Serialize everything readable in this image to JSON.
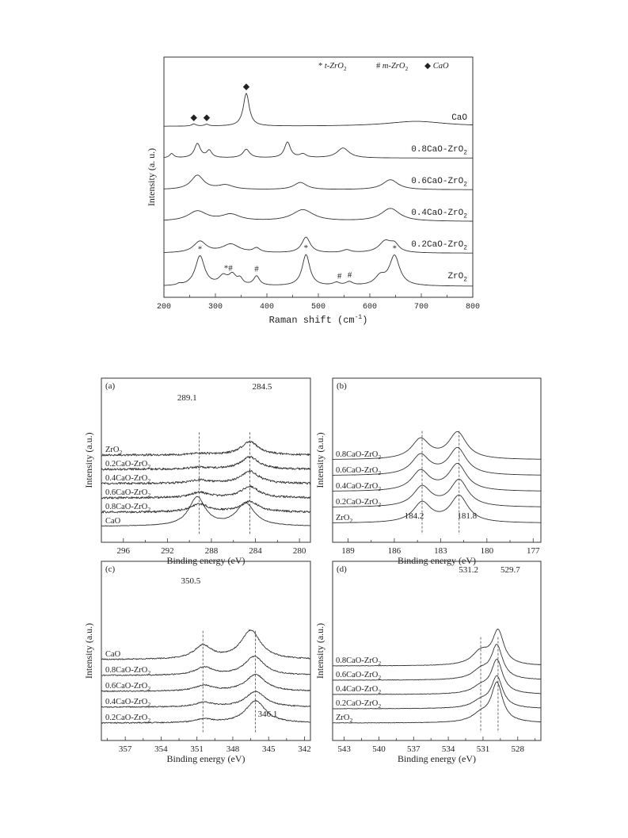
{
  "chart_data": [
    {
      "type": "line",
      "panel": "raman",
      "xlabel": "Raman shift (cm",
      "xlabel_sup": "-1",
      "xlabel_tail": ")",
      "ylabel": "Intensity (a. u.)",
      "xlim": [
        200,
        800
      ],
      "xticks": [
        200,
        300,
        400,
        500,
        600,
        700,
        800
      ],
      "legend": [
        {
          "symbol": "*",
          "label": "t-ZrO",
          "sub": "2"
        },
        {
          "symbol": "#",
          "label": "m-ZrO",
          "sub": "2"
        },
        {
          "symbol": "◆",
          "label": "CaO",
          "sub": ""
        }
      ],
      "series": [
        {
          "name": "CaO",
          "sub": "",
          "offset": 5,
          "baseline": 0.2,
          "peaks": [
            [
              258,
              0.15,
              5
            ],
            [
              283,
              0.12,
              5
            ],
            [
              360,
              2.3,
              7
            ],
            [
              690,
              0.35,
              70
            ]
          ]
        },
        {
          "name": "0.8CaO-ZrO",
          "sub": "2",
          "offset": 4,
          "baseline": 0.2,
          "peaks": [
            [
              215,
              0.3,
              5
            ],
            [
              265,
              1.0,
              7
            ],
            [
              288,
              0.5,
              6
            ],
            [
              360,
              0.6,
              8
            ],
            [
              440,
              1.1,
              7
            ],
            [
              470,
              0.25,
              8
            ],
            [
              548,
              0.7,
              14
            ]
          ]
        },
        {
          "name": "0.6CaO-ZrO",
          "sub": "2",
          "offset": 3,
          "baseline": 0.2,
          "peaks": [
            [
              265,
              1.0,
              15
            ],
            [
              320,
              0.3,
              18
            ],
            [
              465,
              0.5,
              15
            ],
            [
              640,
              0.7,
              18
            ]
          ]
        },
        {
          "name": "0.4CaO-ZrO",
          "sub": "2",
          "offset": 2,
          "baseline": 0.2,
          "peaks": [
            [
              265,
              0.7,
              22
            ],
            [
              330,
              0.45,
              22
            ],
            [
              470,
              0.8,
              25
            ],
            [
              640,
              0.9,
              22
            ]
          ]
        },
        {
          "name": "0.2CaO-ZrO",
          "sub": "2",
          "offset": 1,
          "baseline": 0.2,
          "peaks": [
            [
              270,
              0.8,
              15
            ],
            [
              330,
              0.6,
              20
            ],
            [
              380,
              0.3,
              8
            ],
            [
              476,
              1.1,
              10
            ],
            [
              555,
              0.2,
              10
            ],
            [
              630,
              0.8,
              15
            ],
            [
              648,
              0.5,
              10
            ]
          ]
        },
        {
          "name": "ZrO",
          "sub": "2",
          "offset": 0,
          "baseline": 0.1,
          "peaks": [
            [
              230,
              0.1,
              5
            ],
            [
              270,
              2.1,
              11
            ],
            [
              315,
              0.6,
              10
            ],
            [
              333,
              0.7,
              9
            ],
            [
              348,
              0.4,
              6
            ],
            [
              380,
              0.65,
              7
            ],
            [
              476,
              2.2,
              9
            ],
            [
              535,
              0.2,
              8
            ],
            [
              560,
              0.25,
              8
            ],
            [
              620,
              0.6,
              12
            ],
            [
              648,
              2.1,
              12
            ]
          ]
        }
      ],
      "annotations": [
        {
          "x": 258,
          "mark": "◆",
          "row": 5
        },
        {
          "x": 283,
          "mark": "◆",
          "row": 5
        },
        {
          "x": 360,
          "mark": "◆",
          "row": 5
        },
        {
          "x": 270,
          "mark": "*",
          "row": 0
        },
        {
          "x": 325,
          "mark": "*#",
          "row": 0
        },
        {
          "x": 380,
          "mark": "#",
          "row": 0
        },
        {
          "x": 476,
          "mark": "*",
          "row": 0
        },
        {
          "x": 541,
          "mark": "#",
          "row": 0
        },
        {
          "x": 561,
          "mark": "#",
          "row": 0
        },
        {
          "x": 648,
          "mark": "*",
          "row": 0
        }
      ]
    },
    {
      "type": "line",
      "panel": "(a)",
      "xlabel": "Binding energy (eV)",
      "ylabel": "Intensity (a.u.)",
      "xlim": [
        298,
        279
      ],
      "xticks": [
        296,
        292,
        288,
        284,
        280
      ],
      "peak_labels": [
        {
          "x": 289.1,
          "text": "289.1"
        },
        {
          "x": 284.5,
          "text": "284.5"
        }
      ],
      "series": [
        {
          "name": "ZrO",
          "sub": "2",
          "offset": 5,
          "noise": 0.12,
          "peaks": [
            [
              289.1,
              0.15,
              1.2
            ],
            [
              284.5,
              1.5,
              1.0
            ]
          ]
        },
        {
          "name": "0.2CaO-ZrO",
          "sub": "2",
          "offset": 4,
          "noise": 0.12,
          "peaks": [
            [
              289.1,
              0.2,
              1.2
            ],
            [
              284.5,
              1.4,
              1.0
            ]
          ]
        },
        {
          "name": "0.4CaO-ZrO",
          "sub": "2",
          "offset": 3,
          "noise": 0.12,
          "peaks": [
            [
              289.1,
              0.4,
              1.1
            ],
            [
              284.5,
              1.4,
              1.0
            ]
          ]
        },
        {
          "name": "0.6CaO-ZrO",
          "sub": "2",
          "offset": 2,
          "noise": 0.12,
          "peaks": [
            [
              289.1,
              0.6,
              1.0
            ],
            [
              284.5,
              1.3,
              1.0
            ]
          ]
        },
        {
          "name": "0.8CaO-ZrO",
          "sub": "2",
          "offset": 1,
          "noise": 0.12,
          "peaks": [
            [
              289.1,
              0.9,
              1.0
            ],
            [
              284.5,
              1.2,
              1.0
            ]
          ]
        },
        {
          "name": "CaO",
          "sub": "",
          "offset": 0,
          "noise": 0.03,
          "peaks": [
            [
              289.3,
              3.3,
              0.9
            ],
            [
              284.9,
              2.6,
              1.0
            ]
          ]
        }
      ]
    },
    {
      "type": "line",
      "panel": "(b)",
      "xlabel": "Binding energy (eV)",
      "ylabel": "Intensity (a.u.)",
      "xlim": [
        190,
        176.5
      ],
      "xticks": [
        189,
        186,
        183,
        180,
        177
      ],
      "peak_labels": [
        {
          "x": 184.2,
          "text": "184.2"
        },
        {
          "x": 181.8,
          "text": "181.8"
        }
      ],
      "series": [
        {
          "name": "0.8CaO-ZrO",
          "sub": "2",
          "offset": 4,
          "noise": 0.0,
          "peaks": [
            [
              184.3,
              1.8,
              0.7
            ],
            [
              181.9,
              2.4,
              0.7
            ]
          ]
        },
        {
          "name": "0.6CaO-ZrO",
          "sub": "2",
          "offset": 3,
          "noise": 0.0,
          "peaks": [
            [
              184.3,
              1.8,
              0.7
            ],
            [
              181.9,
              2.4,
              0.7
            ]
          ]
        },
        {
          "name": "0.4CaO-ZrO",
          "sub": "2",
          "offset": 2,
          "noise": 0.0,
          "peaks": [
            [
              184.3,
              1.8,
              0.7
            ],
            [
              181.9,
              2.4,
              0.7
            ]
          ]
        },
        {
          "name": "0.2CaO-ZrO",
          "sub": "2",
          "offset": 1,
          "noise": 0.0,
          "peaks": [
            [
              184.2,
              1.8,
              0.7
            ],
            [
              181.8,
              2.4,
              0.7
            ]
          ]
        },
        {
          "name": "ZrO",
          "sub": "2",
          "offset": 0,
          "noise": 0.0,
          "peaks": [
            [
              184.2,
              1.8,
              0.7
            ],
            [
              181.8,
              2.4,
              0.7
            ]
          ]
        }
      ]
    },
    {
      "type": "line",
      "panel": "(c)",
      "xlabel": "Binding energy (eV)",
      "ylabel": "Intensity (a.u.)",
      "xlim": [
        359,
        341.5
      ],
      "xticks": [
        357,
        354,
        351,
        348,
        345,
        342
      ],
      "peak_labels": [
        {
          "x": 350.5,
          "text": "350.5",
          "pos": "top"
        },
        {
          "x": 346.1,
          "text": "346.1",
          "pos": "bottom"
        }
      ],
      "series": [
        {
          "name": "CaO",
          "sub": "",
          "offset": 4,
          "noise": 0.05,
          "peaks": [
            [
              350.5,
              1.2,
              0.9
            ],
            [
              346.5,
              2.6,
              1.0
            ]
          ]
        },
        {
          "name": "0.8CaO-ZrO",
          "sub": "2",
          "offset": 3,
          "noise": 0.05,
          "peaks": [
            [
              350.4,
              0.7,
              0.9
            ],
            [
              346.2,
              1.7,
              1.0
            ]
          ]
        },
        {
          "name": "0.6CaO-ZrO",
          "sub": "2",
          "offset": 2,
          "noise": 0.05,
          "peaks": [
            [
              350.4,
              0.5,
              0.9
            ],
            [
              346.1,
              1.5,
              1.0
            ]
          ]
        },
        {
          "name": "0.4CaO-ZrO",
          "sub": "2",
          "offset": 1,
          "noise": 0.05,
          "peaks": [
            [
              350.4,
              0.4,
              0.9
            ],
            [
              346.1,
              1.4,
              1.0
            ]
          ]
        },
        {
          "name": "0.2CaO-ZrO",
          "sub": "2",
          "offset": 0,
          "noise": 0.05,
          "peaks": [
            [
              350.4,
              0.3,
              0.9
            ],
            [
              346.1,
              2.0,
              1.0
            ]
          ]
        }
      ]
    },
    {
      "type": "line",
      "panel": "(d)",
      "xlabel": "Binding energy (eV)",
      "ylabel": "Intensity (a.u.)",
      "xlim": [
        544,
        526
      ],
      "xticks": [
        543,
        540,
        537,
        534,
        531,
        528
      ],
      "peak_labels": [
        {
          "x": 531.2,
          "text": "531.2"
        },
        {
          "x": 529.7,
          "text": "529.7"
        }
      ],
      "series": [
        {
          "name": "0.8CaO-ZrO",
          "sub": "2",
          "offset": 4,
          "noise": 0.02,
          "peaks": [
            [
              531.2,
              1.2,
              0.9
            ],
            [
              529.7,
              3.0,
              0.6
            ]
          ]
        },
        {
          "name": "0.6CaO-ZrO",
          "sub": "2",
          "offset": 3,
          "noise": 0.02,
          "peaks": [
            [
              531.2,
              0.8,
              0.9
            ],
            [
              529.8,
              3.0,
              0.6
            ]
          ]
        },
        {
          "name": "0.4CaO-ZrO",
          "sub": "2",
          "offset": 2,
          "noise": 0.02,
          "peaks": [
            [
              531.2,
              0.6,
              0.9
            ],
            [
              529.8,
              3.0,
              0.6
            ]
          ]
        },
        {
          "name": "0.2CaO-ZrO",
          "sub": "2",
          "offset": 1,
          "noise": 0.02,
          "peaks": [
            [
              531.2,
              0.6,
              0.9
            ],
            [
              529.8,
              2.8,
              0.6
            ]
          ]
        },
        {
          "name": "ZrO",
          "sub": "2",
          "offset": 0,
          "noise": 0.02,
          "peaks": [
            [
              531.2,
              0.7,
              0.9
            ],
            [
              529.8,
              3.5,
              0.6
            ]
          ]
        }
      ]
    }
  ]
}
